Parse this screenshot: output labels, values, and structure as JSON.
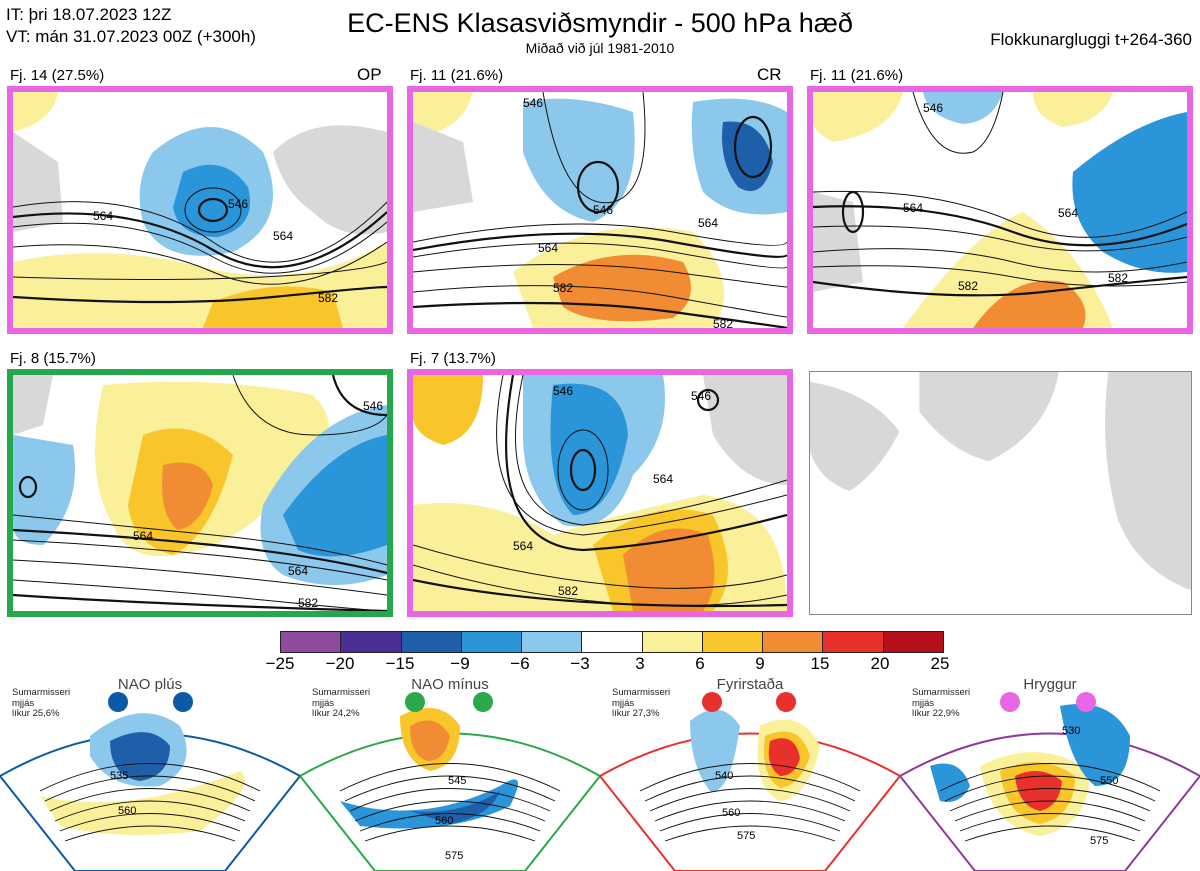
{
  "header": {
    "init_time": "IT: þri 18.07.2023 12Z",
    "valid_time": "VT: mán 31.07.2023 00Z  (+300h)",
    "title": "EC-ENS Klasasviðsmyndir - 500 hPa hæð",
    "subtitle": "Miðað við júl 1981-2010",
    "cluster_window": "Flokkunargluggi t+264-360"
  },
  "panels": [
    {
      "label": "Fj. 14 (27.5%)",
      "code": "OP",
      "border": "magenta",
      "contours": [
        "546",
        "564",
        "564",
        "582"
      ]
    },
    {
      "label": "Fj. 11 (21.6%)",
      "code": "CR",
      "border": "magenta",
      "contours": [
        "546",
        "546",
        "564",
        "564",
        "582",
        "582"
      ]
    },
    {
      "label": "Fj. 11 (21.6%)",
      "code": "",
      "border": "magenta",
      "contours": [
        "546",
        "564",
        "564",
        "582",
        "582"
      ]
    },
    {
      "label": "Fj. 8 (15.7%)",
      "code": "",
      "border": "green",
      "contours": [
        "546",
        "564",
        "564",
        "582"
      ]
    },
    {
      "label": "Fj. 7 (13.7%)",
      "code": "",
      "border": "magenta",
      "contours": [
        "564",
        "564",
        "582",
        "546",
        "546"
      ]
    }
  ],
  "colorbar": {
    "colors": [
      "#8e4a9c",
      "#4b2f94",
      "#1f5ea8",
      "#2a95d8",
      "#8bc8ec",
      "#ffffff",
      "#fbf09a",
      "#f8c62a",
      "#f28c34",
      "#e8312c",
      "#b3101c"
    ],
    "ticks": [
      "−25",
      "−20",
      "−15",
      "−9",
      "−6",
      "−3",
      "3",
      "6",
      "9",
      "15",
      "20",
      "25"
    ]
  },
  "regimes": [
    {
      "name": "NAO plús",
      "season": "Sumarmisseri",
      "measure": "mjjás",
      "probability": "líkur 25,6%",
      "color": "#0b5aa8",
      "contour_labels": [
        "535",
        "560"
      ]
    },
    {
      "name": "NAO mínus",
      "season": "Sumarmisseri",
      "measure": "mjjás",
      "probability": "líkur 24,2%",
      "color": "#2aa84a",
      "contour_labels": [
        "545",
        "560",
        "575"
      ]
    },
    {
      "name": "Fyrirstaða",
      "season": "Sumarmisseri",
      "measure": "mjjás",
      "probability": "líkur 27,3%",
      "color": "#e8312c",
      "contour_labels": [
        "540",
        "560",
        "575"
      ]
    },
    {
      "name": "Hryggur",
      "season": "Sumarmisseri",
      "measure": "mjjás",
      "probability": "líkur 22,9%",
      "color": "#e866e6",
      "contour_labels": [
        "530",
        "550",
        "575"
      ]
    }
  ]
}
